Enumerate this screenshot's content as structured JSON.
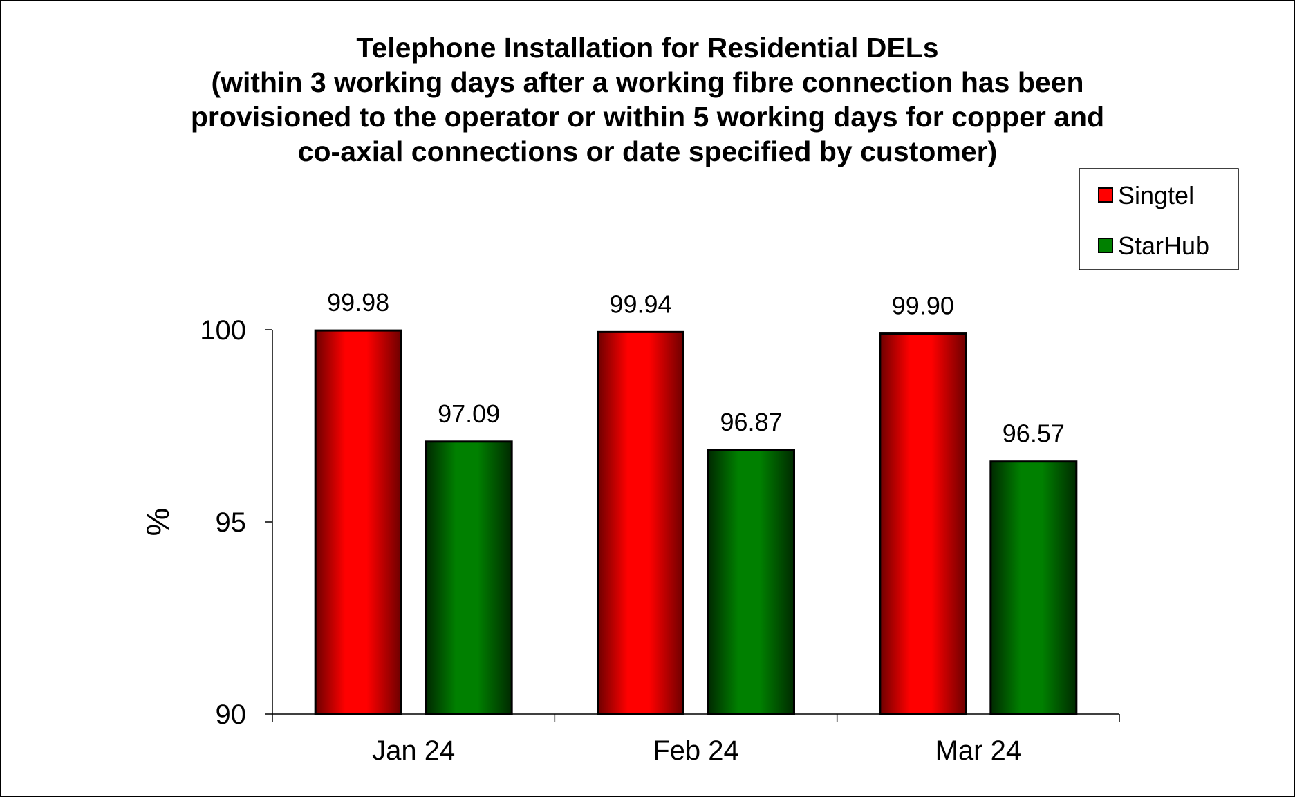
{
  "chart_data": {
    "type": "bar",
    "title_lines": [
      "Telephone Installation for Residential DELs",
      "(within 3 working days after a working fibre connection has been",
      "provisioned to the operator or within 5 working days for copper and",
      "co-axial connections or date specified by customer)"
    ],
    "categories": [
      "Jan 24",
      "Feb 24",
      "Mar 24"
    ],
    "series": [
      {
        "name": "Singtel",
        "values": [
          99.98,
          99.94,
          99.9
        ],
        "value_labels": [
          "99.98",
          "99.94",
          "99.90"
        ],
        "color": "#ff0000",
        "dark": "#6e0000"
      },
      {
        "name": "StarHub",
        "values": [
          97.09,
          96.87,
          96.57
        ],
        "value_labels": [
          "97.09",
          "96.87",
          "96.57"
        ],
        "color": "#008000",
        "dark": "#002a00"
      }
    ],
    "ylabel": "%",
    "xlabel": "",
    "ylim": [
      90,
      100
    ],
    "yticks": [
      90,
      95,
      100
    ],
    "grid": false,
    "legend_position": "top-right"
  }
}
